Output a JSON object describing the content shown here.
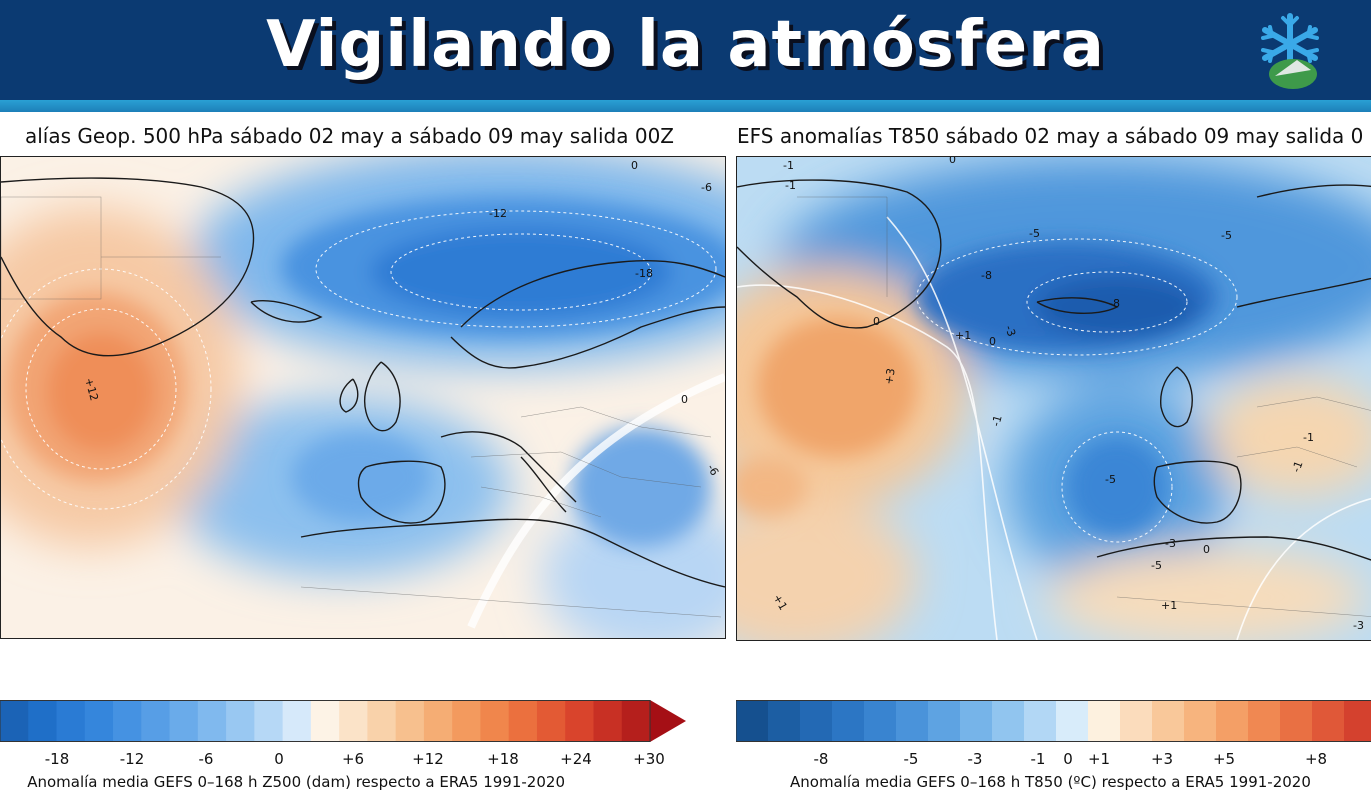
{
  "header": {
    "title": "Vigilando la atmósfera",
    "logo": "snowflake-mountain-icon"
  },
  "left_map": {
    "title": "alías Geop. 500 hPa sábado 02 may a sábado 09 may salida 00Z",
    "contour_labels": [
      "0",
      "-6",
      "-12",
      "-18",
      "+12",
      "0",
      "-6"
    ],
    "colorbar": {
      "ticks": [
        "-18",
        "-12",
        "-6",
        "0",
        "+6",
        "+12",
        "+18",
        "+24",
        "+30"
      ],
      "caption": "Anomalía media GEFS 0–168 h Z500 (dam) respecto a ERA5 1991-2020"
    }
  },
  "right_map": {
    "title": "EFS anomalías T850 sábado 02 may a sábado 09 may salida 0",
    "contour_labels": [
      "-1",
      "-1",
      "0",
      "-5",
      "-5",
      "-8",
      "-8",
      "0",
      "+1",
      "-3",
      "0",
      "+3",
      "-1",
      "-5",
      "-1",
      "-1",
      "-3",
      "-5",
      "0",
      "+1",
      "+1",
      "-3"
    ],
    "colorbar": {
      "ticks": [
        "-8",
        "-5",
        "-3",
        "-1",
        "0",
        "+1",
        "+3",
        "+5",
        "+8"
      ],
      "caption": "Anomalía media GEFS 0–168 h T850 (ºC) respecto a ERA5 1991-2020"
    }
  },
  "colors": {
    "banner": "#0b3a72",
    "stripe": "#2aa0d4",
    "cold": "#1f6fd0",
    "warm": "#f08a4b"
  }
}
